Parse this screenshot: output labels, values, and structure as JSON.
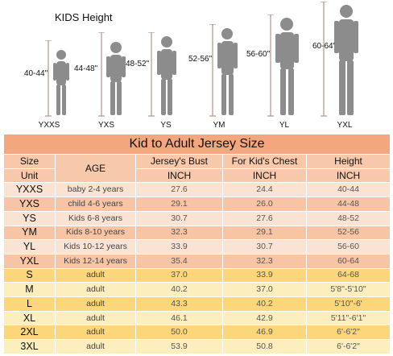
{
  "header": {
    "title": "KIDS Height"
  },
  "figures": [
    {
      "size": "YXXS",
      "height": "40-44\""
    },
    {
      "size": "YXS",
      "height": "44-48\""
    },
    {
      "size": "YS",
      "height": "48-52\""
    },
    {
      "size": "YM",
      "height": "52-56\""
    },
    {
      "size": "YL",
      "height": "56-60\""
    },
    {
      "size": "YXL",
      "height": "60-64\""
    }
  ],
  "table": {
    "title": "Kid to Adult Jersey Size",
    "headers": {
      "size": "Size",
      "unit": "Unit",
      "age": "AGE",
      "bust": "Jersey's Bust",
      "chest": "For Kid's Chest",
      "height": "Height",
      "bust_unit": "INCH",
      "chest_unit": "INCH",
      "height_unit": "INCH"
    },
    "rows": [
      {
        "size": "YXXS",
        "age": "baby 2-4 years",
        "bust": "27.6",
        "chest": "24.4",
        "height": "40-44",
        "bg": "#fbe3d3"
      },
      {
        "size": "YXS",
        "age": "child 4-6 years",
        "bust": "29.1",
        "chest": "26.0",
        "height": "44-48",
        "bg": "#f8c4a6"
      },
      {
        "size": "YS",
        "age": "Kids 6-8 years",
        "bust": "30.7",
        "chest": "27.6",
        "height": "48-52",
        "bg": "#fbe3d3"
      },
      {
        "size": "YM",
        "age": "Kids 8-10 years",
        "bust": "32.3",
        "chest": "29.1",
        "height": "52-56",
        "bg": "#f8c4a6"
      },
      {
        "size": "YL",
        "age": "Kids 10-12 years",
        "bust": "33.9",
        "chest": "30.7",
        "height": "56-60",
        "bg": "#fbe3d3"
      },
      {
        "size": "YXL",
        "age": "Kids 12-14 years",
        "bust": "35.4",
        "chest": "32.3",
        "height": "60-64",
        "bg": "#f8c4a6"
      },
      {
        "size": "S",
        "age": "adult",
        "bust": "37.0",
        "chest": "33.9",
        "height": "64-68",
        "bg": "#fbd67a"
      },
      {
        "size": "M",
        "age": "adult",
        "bust": "40.2",
        "chest": "37.0",
        "height": "5'8\"-5'10\"",
        "bg": "#fdeebd"
      },
      {
        "size": "L",
        "age": "adult",
        "bust": "43.3",
        "chest": "40.2",
        "height": "5'10\"-6'",
        "bg": "#fbd67a"
      },
      {
        "size": "XL",
        "age": "adult",
        "bust": "46.1",
        "chest": "42.9",
        "height": "5'11\"-6'1\"",
        "bg": "#fdeebd"
      },
      {
        "size": "2XL",
        "age": "adult",
        "bust": "50.0",
        "chest": "46.9",
        "height": "6'-6'2\"",
        "bg": "#fbd67a"
      },
      {
        "size": "3XL",
        "age": "adult",
        "bust": "53.9",
        "chest": "50.8",
        "height": "6'-6'2\"",
        "bg": "#fdeebd"
      }
    ]
  },
  "colors": {
    "title_bg": "#f4a67e",
    "header_bg": "#f8c8aa",
    "kid_light": "#fbe3d3",
    "kid_dark": "#f8c4a6",
    "adult_dark": "#fbd67a",
    "adult_light": "#fdeebd",
    "figure": "#8c8c8c"
  }
}
